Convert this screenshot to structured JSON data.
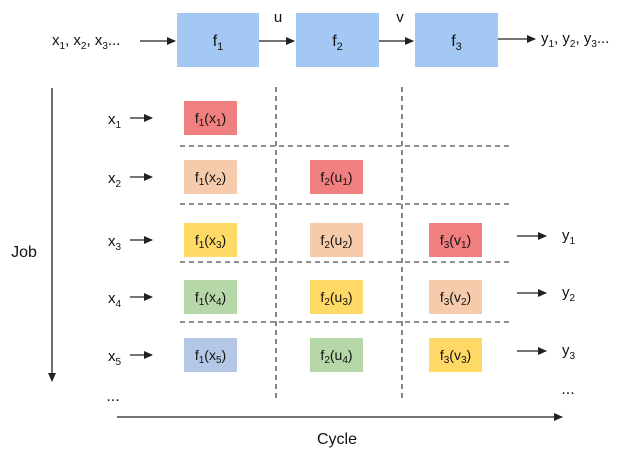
{
  "top": {
    "input_label": "x1, x2, x3...",
    "output_label": "y1, y2, y3...",
    "functions": [
      {
        "name": "f1"
      },
      {
        "name": "f2"
      },
      {
        "name": "f3"
      }
    ],
    "connectors": [
      "u",
      "v"
    ]
  },
  "axes": {
    "job_label": "Job",
    "cycle_label": "Cycle",
    "ellipsis_left": "...",
    "ellipsis_right": "..."
  },
  "jobs": [
    {
      "input": "x1",
      "output": null,
      "cells": [
        {
          "col": 0,
          "label": "f1(x1)",
          "color": "#f07f7f"
        }
      ]
    },
    {
      "input": "x2",
      "output": null,
      "cells": [
        {
          "col": 0,
          "label": "f1(x2)",
          "color": "#f5cbab"
        },
        {
          "col": 1,
          "label": "f2(u1)",
          "color": "#f07f7f"
        }
      ]
    },
    {
      "input": "x3",
      "output": "y1",
      "cells": [
        {
          "col": 0,
          "label": "f1(x3)",
          "color": "#ffd966"
        },
        {
          "col": 1,
          "label": "f2(u2)",
          "color": "#f5cbab"
        },
        {
          "col": 2,
          "label": "f3(v1)",
          "color": "#f07f7f"
        }
      ]
    },
    {
      "input": "x4",
      "output": "y2",
      "cells": [
        {
          "col": 0,
          "label": "f1(x4)",
          "color": "#b6d7a8"
        },
        {
          "col": 1,
          "label": "f2(u3)",
          "color": "#ffd966"
        },
        {
          "col": 2,
          "label": "f3(v2)",
          "color": "#f5cbab"
        }
      ]
    },
    {
      "input": "x5",
      "output": "y3",
      "cells": [
        {
          "col": 0,
          "label": "f1(x5)",
          "color": "#b4c7e7"
        },
        {
          "col": 1,
          "label": "f2(u4)",
          "color": "#b6d7a8"
        },
        {
          "col": 2,
          "label": "f3(v3)",
          "color": "#ffd966"
        }
      ]
    }
  ],
  "colors": {
    "function_box": "#a4c8f4",
    "lines": "#222222"
  }
}
